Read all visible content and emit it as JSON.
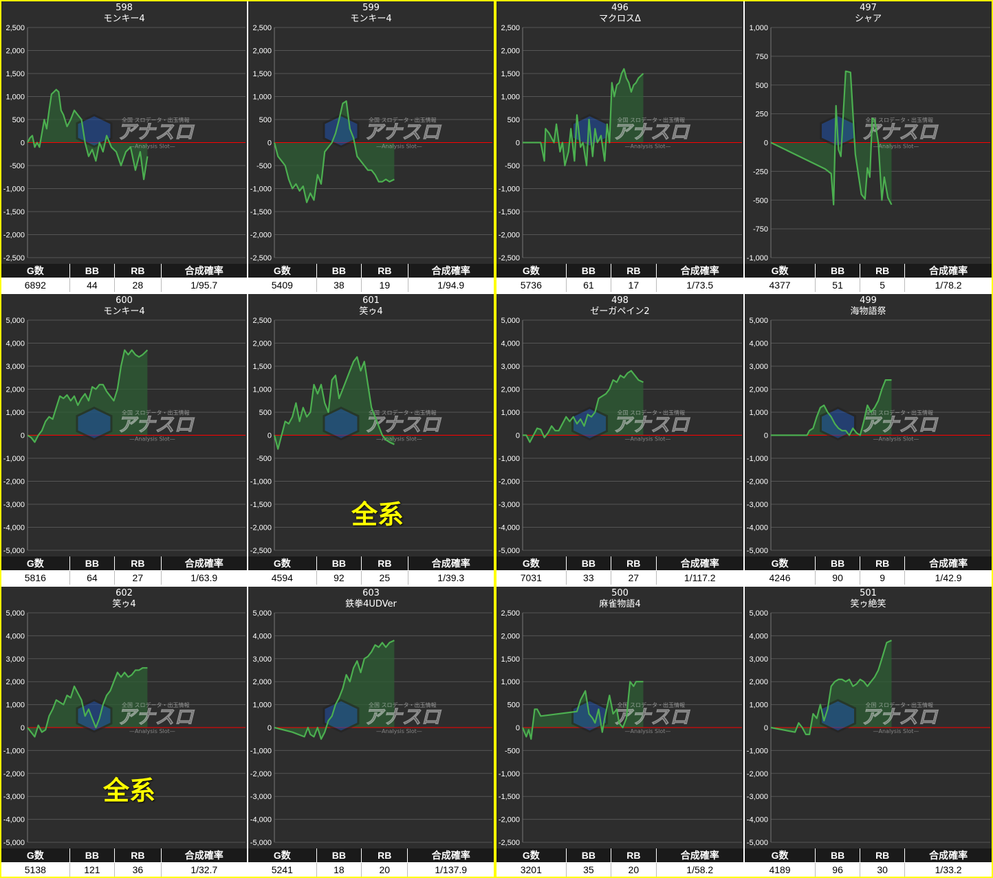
{
  "headers": {
    "g": "G数",
    "bb": "BB",
    "rb": "RB",
    "rate": "合成確率"
  },
  "colors": {
    "line": "#4caf50",
    "fill": "#2e5e34",
    "zero": "#ff0000",
    "grid": "#555555",
    "border": "#ffff00"
  },
  "watermark": {
    "brand": "アナスロ",
    "sub": "—Analysis Slot—",
    "tag": "全国 スロデータ・出玉情報"
  },
  "overlay_text": "全系",
  "chart_data": [
    {
      "type": "line",
      "number": "598",
      "name": "モンキー4",
      "g": "6892",
      "bb": "44",
      "rb": "28",
      "rate": "1/95.7",
      "ticks": [
        "2,500",
        "2,000",
        "1,500",
        "1,000",
        "500",
        "0",
        "-500",
        "-1,000",
        "-1,500",
        "-2,000",
        "-2,500"
      ],
      "ylim": [
        -2500,
        2500
      ],
      "x": [
        0,
        0.02,
        0.04,
        0.06,
        0.08,
        0.1,
        0.12,
        0.14,
        0.16,
        0.18,
        0.2,
        0.22,
        0.24,
        0.26,
        0.28,
        0.3,
        0.33,
        0.36,
        0.39,
        0.42,
        0.45,
        0.48,
        0.51,
        0.54,
        0.57,
        0.6,
        0.63,
        0.66,
        0.7,
        0.74,
        0.78,
        0.82,
        0.86,
        0.9,
        0.94,
        0.97,
        1.0
      ],
      "y": [
        0,
        100,
        150,
        -100,
        0,
        -100,
        200,
        500,
        300,
        700,
        1050,
        1100,
        1150,
        1100,
        700,
        600,
        350,
        500,
        700,
        600,
        500,
        0,
        -300,
        -150,
        -400,
        0,
        -200,
        150,
        -100,
        -200,
        -500,
        -200,
        -100,
        -600,
        -200,
        -800,
        -300
      ]
    },
    {
      "type": "line",
      "number": "599",
      "name": "モンキー4",
      "g": "5409",
      "bb": "38",
      "rb": "19",
      "rate": "1/94.9",
      "ticks": [
        "2,500",
        "2,000",
        "1,500",
        "1,000",
        "500",
        "0",
        "-500",
        "-1,000",
        "-1,500",
        "-2,000",
        "-2,500"
      ],
      "ylim": [
        -2500,
        2500
      ],
      "x": [
        0,
        0.03,
        0.06,
        0.09,
        0.12,
        0.15,
        0.18,
        0.21,
        0.24,
        0.27,
        0.3,
        0.33,
        0.36,
        0.39,
        0.42,
        0.45,
        0.48,
        0.51,
        0.54,
        0.57,
        0.6,
        0.63,
        0.66,
        0.69,
        0.72,
        0.75,
        0.78,
        0.81,
        0.84,
        0.87,
        0.9,
        0.93,
        0.96,
        1.0
      ],
      "y": [
        0,
        -300,
        -400,
        -500,
        -800,
        -1000,
        -900,
        -1050,
        -950,
        -1300,
        -1100,
        -1250,
        -700,
        -900,
        -200,
        -100,
        0,
        200,
        500,
        850,
        900,
        300,
        100,
        -300,
        -400,
        -500,
        -600,
        -600,
        -700,
        -850,
        -850,
        -800,
        -850,
        -800
      ]
    },
    {
      "type": "line",
      "number": "496",
      "name": "マクロスΔ",
      "g": "5736",
      "bb": "61",
      "rb": "17",
      "rate": "1/73.5",
      "ticks": [
        "2,500",
        "2,000",
        "1,500",
        "1,000",
        "500",
        "0",
        "-500",
        "-1,000",
        "-1,500",
        "-2,000",
        "-2,500"
      ],
      "ylim": [
        -2500,
        2500
      ],
      "x": [
        0,
        0.08,
        0.15,
        0.18,
        0.19,
        0.22,
        0.26,
        0.28,
        0.31,
        0.33,
        0.35,
        0.38,
        0.4,
        0.43,
        0.45,
        0.48,
        0.5,
        0.53,
        0.55,
        0.58,
        0.6,
        0.62,
        0.65,
        0.68,
        0.7,
        0.72,
        0.74,
        0.76,
        0.78,
        0.8,
        0.82,
        0.84,
        0.86,
        0.88,
        0.9,
        0.92,
        0.94,
        0.96,
        1.0
      ],
      "y": [
        0,
        0,
        0,
        -400,
        300,
        200,
        0,
        400,
        -200,
        0,
        -500,
        -200,
        300,
        -400,
        600,
        -100,
        0,
        -500,
        500,
        -300,
        300,
        0,
        150,
        -400,
        400,
        0,
        1300,
        1000,
        1250,
        1300,
        1500,
        1600,
        1400,
        1300,
        1100,
        1250,
        1300,
        1400,
        1500
      ]
    },
    {
      "type": "line",
      "number": "497",
      "name": "シャア",
      "g": "4377",
      "bb": "51",
      "rb": "5",
      "rate": "1/78.2",
      "ticks": [
        "1,000",
        "750",
        "500",
        "250",
        "0",
        "-250",
        "-500",
        "-750",
        "-1,000"
      ],
      "ylim": [
        -1000,
        1000
      ],
      "x": [
        0,
        0.45,
        0.5,
        0.52,
        0.54,
        0.56,
        0.58,
        0.6,
        0.62,
        0.66,
        0.7,
        0.75,
        0.78,
        0.8,
        0.82,
        0.84,
        0.86,
        0.89,
        0.92,
        0.94,
        0.97,
        1.0
      ],
      "y": [
        0,
        -230,
        -270,
        -540,
        320,
        -60,
        -120,
        250,
        620,
        610,
        -100,
        -450,
        -490,
        -220,
        -300,
        210,
        200,
        0,
        -500,
        -300,
        -480,
        -540
      ]
    },
    {
      "type": "line",
      "number": "600",
      "name": "モンキー4",
      "g": "5816",
      "bb": "64",
      "rb": "27",
      "rate": "1/63.9",
      "ticks": [
        "5,000",
        "4,000",
        "3,000",
        "2,000",
        "1,000",
        "0",
        "-1,000",
        "-2,000",
        "-3,000",
        "-4,000",
        "-5,000"
      ],
      "ylim": [
        -5000,
        5000
      ],
      "x": [
        0,
        0.03,
        0.06,
        0.09,
        0.12,
        0.15,
        0.18,
        0.21,
        0.24,
        0.27,
        0.3,
        0.33,
        0.36,
        0.39,
        0.42,
        0.45,
        0.48,
        0.51,
        0.54,
        0.57,
        0.6,
        0.63,
        0.66,
        0.69,
        0.72,
        0.75,
        0.78,
        0.81,
        0.84,
        0.87,
        0.9,
        0.93,
        0.96,
        1.0
      ],
      "y": [
        0,
        -100,
        -300,
        0,
        200,
        600,
        800,
        700,
        1200,
        1700,
        1600,
        1750,
        1500,
        1700,
        1300,
        1600,
        1800,
        1500,
        2100,
        2000,
        2200,
        2200,
        1900,
        1700,
        1500,
        2000,
        3000,
        3700,
        3500,
        3700,
        3500,
        3400,
        3500,
        3700
      ]
    },
    {
      "type": "line",
      "number": "601",
      "name": "笑ゥ4",
      "g": "4594",
      "bb": "92",
      "rb": "25",
      "rate": "1/39.3",
      "ticks": [
        "2,500",
        "2,000",
        "1,500",
        "1,000",
        "500",
        "0",
        "-500",
        "-1,000",
        "-1,500",
        "-2,000",
        "-2,500"
      ],
      "ylim": [
        -2500,
        2500
      ],
      "x": [
        0,
        0.03,
        0.06,
        0.09,
        0.12,
        0.15,
        0.18,
        0.21,
        0.24,
        0.27,
        0.3,
        0.33,
        0.36,
        0.39,
        0.42,
        0.45,
        0.48,
        0.51,
        0.54,
        0.57,
        0.6,
        0.63,
        0.66,
        0.69,
        0.72,
        0.75,
        0.78,
        0.81,
        0.84,
        0.87,
        0.9,
        0.93,
        0.96,
        1.0
      ],
      "y": [
        0,
        -300,
        0,
        300,
        250,
        400,
        700,
        300,
        600,
        400,
        500,
        1100,
        900,
        1100,
        700,
        500,
        1200,
        1300,
        800,
        1000,
        1200,
        1400,
        1600,
        1700,
        1400,
        1600,
        1100,
        600,
        400,
        200,
        0,
        -100,
        -150,
        -200
      ]
    },
    {
      "type": "line",
      "number": "498",
      "name": "ゼーガペイン2",
      "g": "7031",
      "bb": "33",
      "rb": "27",
      "rate": "1/117.2",
      "ticks": [
        "5,000",
        "4,000",
        "3,000",
        "2,000",
        "1,000",
        "0",
        "-1,000",
        "-2,000",
        "-3,000",
        "-4,000",
        "-5,000"
      ],
      "ylim": [
        -5000,
        5000
      ],
      "x": [
        0,
        0.03,
        0.06,
        0.09,
        0.12,
        0.15,
        0.18,
        0.21,
        0.24,
        0.27,
        0.3,
        0.33,
        0.36,
        0.39,
        0.42,
        0.45,
        0.48,
        0.51,
        0.54,
        0.57,
        0.6,
        0.63,
        0.66,
        0.69,
        0.72,
        0.75,
        0.78,
        0.81,
        0.84,
        0.87,
        0.9,
        0.93,
        0.96,
        1.0
      ],
      "y": [
        0,
        0,
        -300,
        0,
        300,
        250,
        -100,
        100,
        400,
        200,
        200,
        500,
        800,
        600,
        800,
        500,
        700,
        400,
        900,
        800,
        1000,
        1600,
        1700,
        1800,
        2000,
        2400,
        2300,
        2600,
        2500,
        2700,
        2800,
        2600,
        2400,
        2300
      ]
    },
    {
      "type": "line",
      "number": "499",
      "name": "海物語祭",
      "g": "4246",
      "bb": "90",
      "rb": "9",
      "rate": "1/42.9",
      "ticks": [
        "5,000",
        "4,000",
        "3,000",
        "2,000",
        "1,000",
        "0",
        "-1,000",
        "-2,000",
        "-3,000",
        "-4,000",
        "-5,000"
      ],
      "ylim": [
        -5000,
        5000
      ],
      "x": [
        0,
        0.15,
        0.25,
        0.3,
        0.32,
        0.35,
        0.38,
        0.41,
        0.44,
        0.47,
        0.5,
        0.53,
        0.56,
        0.59,
        0.62,
        0.65,
        0.68,
        0.71,
        0.74,
        0.77,
        0.8,
        0.83,
        0.86,
        0.89,
        0.92,
        0.95,
        1.0
      ],
      "y": [
        0,
        0,
        0,
        0,
        200,
        300,
        800,
        1200,
        1300,
        1000,
        800,
        500,
        300,
        200,
        200,
        0,
        300,
        100,
        0,
        600,
        1300,
        1000,
        1200,
        1500,
        2000,
        2400,
        2400
      ]
    },
    {
      "type": "line",
      "number": "602",
      "name": "笑ゥ4",
      "g": "5138",
      "bb": "121",
      "rb": "36",
      "rate": "1/32.7",
      "ticks": [
        "5,000",
        "4,000",
        "3,000",
        "2,000",
        "1,000",
        "0",
        "-1,000",
        "-2,000",
        "-3,000",
        "-4,000",
        "-5,000"
      ],
      "ylim": [
        -5000,
        5000
      ],
      "x": [
        0,
        0.03,
        0.06,
        0.09,
        0.12,
        0.15,
        0.18,
        0.21,
        0.24,
        0.27,
        0.3,
        0.33,
        0.36,
        0.39,
        0.42,
        0.45,
        0.48,
        0.51,
        0.54,
        0.57,
        0.6,
        0.63,
        0.66,
        0.69,
        0.72,
        0.75,
        0.78,
        0.81,
        0.84,
        0.87,
        0.9,
        0.93,
        0.96,
        1.0
      ],
      "y": [
        0,
        -200,
        -400,
        100,
        -200,
        -100,
        500,
        800,
        1200,
        1100,
        1000,
        1400,
        1300,
        1800,
        1500,
        1200,
        500,
        800,
        400,
        0,
        400,
        1000,
        1400,
        1600,
        2000,
        2400,
        2200,
        2400,
        2200,
        2300,
        2500,
        2500,
        2600,
        2600
      ]
    },
    {
      "type": "line",
      "number": "603",
      "name": "鉄拳4UDVer",
      "g": "5241",
      "bb": "18",
      "rb": "20",
      "rate": "1/137.9",
      "ticks": [
        "5,000",
        "4,000",
        "3,000",
        "2,000",
        "1,000",
        "0",
        "-1,000",
        "-2,000",
        "-3,000",
        "-4,000",
        "-5,000"
      ],
      "ylim": [
        -5000,
        5000
      ],
      "x": [
        0,
        0.15,
        0.25,
        0.28,
        0.3,
        0.33,
        0.36,
        0.39,
        0.42,
        0.45,
        0.48,
        0.51,
        0.54,
        0.57,
        0.6,
        0.63,
        0.66,
        0.69,
        0.72,
        0.75,
        0.78,
        0.81,
        0.84,
        0.87,
        0.9,
        0.93,
        0.96,
        1.0
      ],
      "y": [
        0,
        -200,
        -400,
        0,
        -300,
        -400,
        0,
        -500,
        -200,
        300,
        500,
        1000,
        1300,
        1700,
        2300,
        2000,
        2600,
        2900,
        2400,
        3000,
        3100,
        3300,
        3600,
        3500,
        3700,
        3500,
        3700,
        3800
      ]
    },
    {
      "type": "line",
      "number": "500",
      "name": "麻雀物語4",
      "g": "3201",
      "bb": "35",
      "rb": "20",
      "rate": "1/58.2",
      "ticks": [
        "2,500",
        "2,000",
        "1,500",
        "1,000",
        "500",
        "0",
        "-500",
        "-1,000",
        "-1,500",
        "-2,000",
        "-2,500"
      ],
      "ylim": [
        -2500,
        2500
      ],
      "x": [
        0,
        0.03,
        0.05,
        0.07,
        0.1,
        0.12,
        0.15,
        0.45,
        0.48,
        0.52,
        0.55,
        0.58,
        0.6,
        0.63,
        0.66,
        0.68,
        0.72,
        0.75,
        0.78,
        0.8,
        0.83,
        0.86,
        0.89,
        0.92,
        0.94,
        1.0
      ],
      "y": [
        0,
        -200,
        -50,
        -250,
        400,
        400,
        250,
        350,
        600,
        800,
        300,
        200,
        100,
        400,
        -100,
        200,
        700,
        300,
        400,
        100,
        0,
        200,
        1000,
        900,
        1000,
        1000
      ]
    },
    {
      "type": "line",
      "number": "501",
      "name": "笑ゥ絶笑",
      "g": "4189",
      "bb": "96",
      "rb": "30",
      "rate": "1/33.2",
      "ticks": [
        "5,000",
        "4,000",
        "3,000",
        "2,000",
        "1,000",
        "0",
        "-1,000",
        "-2,000",
        "-3,000",
        "-4,000",
        "-5,000"
      ],
      "ylim": [
        -5000,
        5000
      ],
      "x": [
        0,
        0.2,
        0.23,
        0.26,
        0.29,
        0.32,
        0.35,
        0.38,
        0.41,
        0.44,
        0.47,
        0.5,
        0.53,
        0.56,
        0.59,
        0.62,
        0.65,
        0.68,
        0.71,
        0.74,
        0.77,
        0.8,
        0.83,
        0.86,
        0.89,
        0.92,
        0.96,
        1.0
      ],
      "y": [
        0,
        -200,
        200,
        0,
        -300,
        -300,
        600,
        400,
        1000,
        300,
        800,
        1800,
        2000,
        2100,
        2100,
        2000,
        2100,
        1800,
        1900,
        2100,
        2000,
        1800,
        2000,
        2200,
        2500,
        3000,
        3700,
        3800
      ]
    }
  ]
}
